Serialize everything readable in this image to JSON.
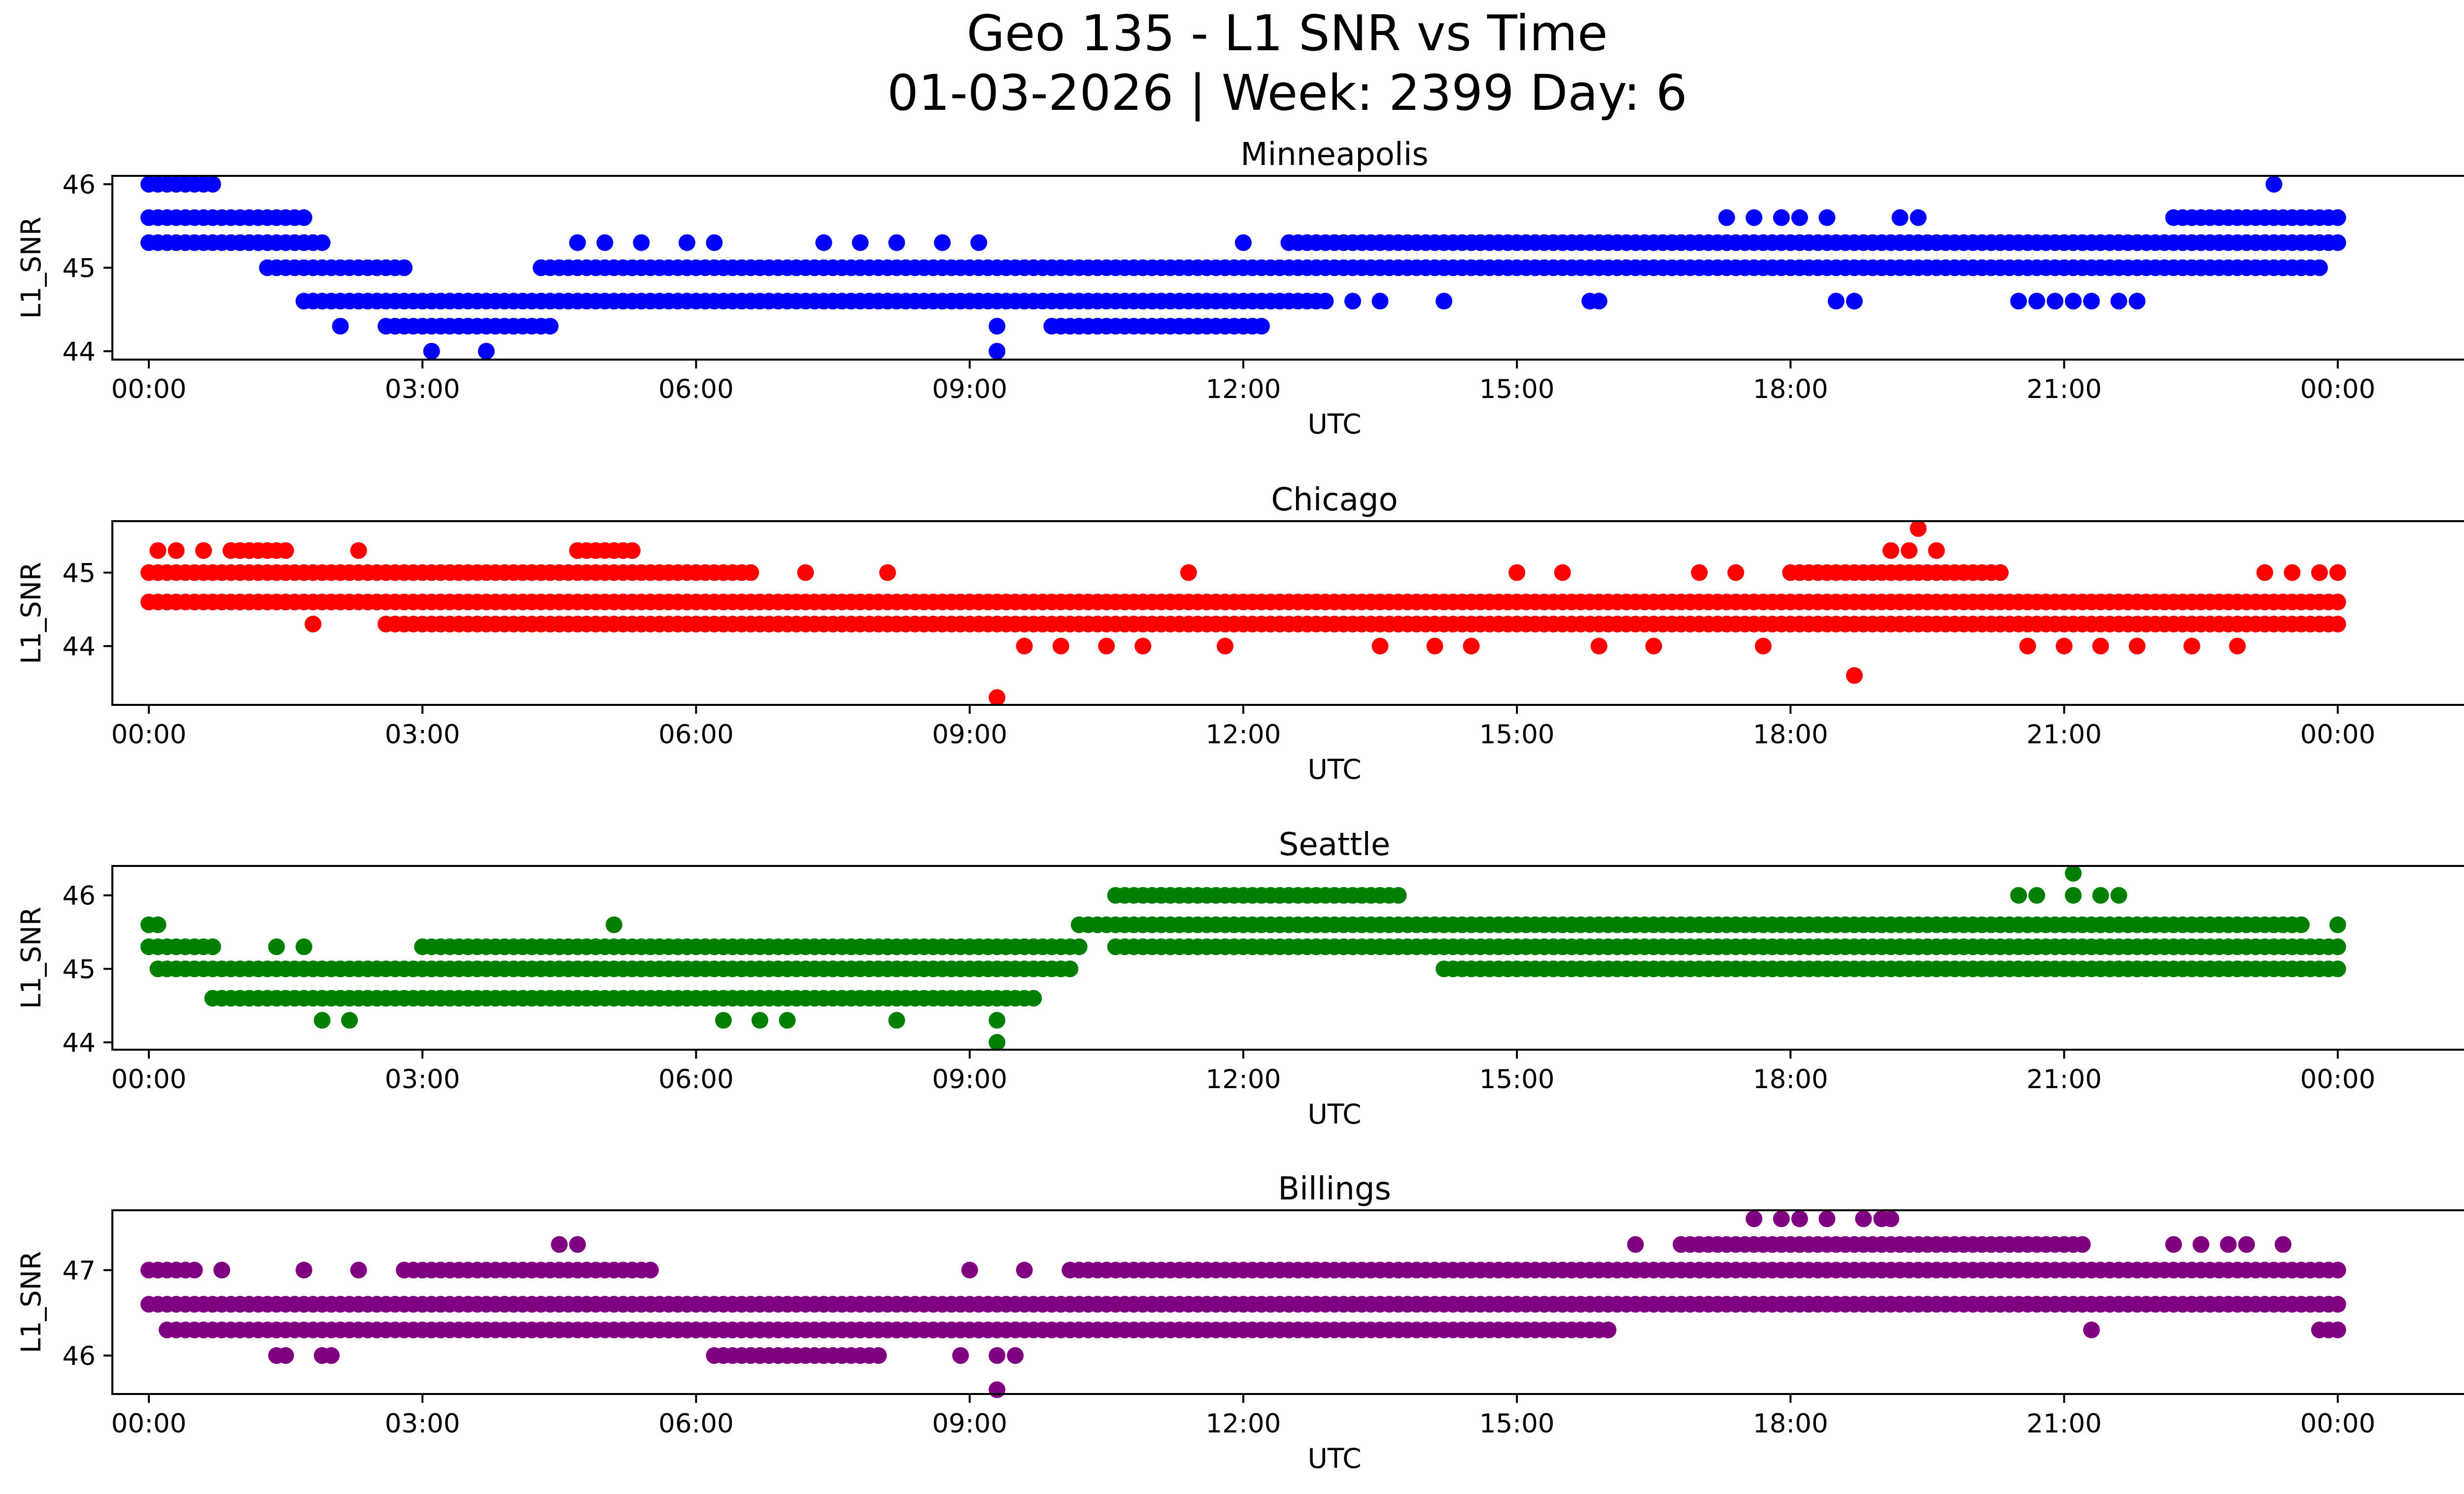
{
  "figure": {
    "title_line1": "Geo 135 - L1 SNR vs Time",
    "title_line2": "01-03-2026 | Week: 2399 Day: 6"
  },
  "chart_data": [
    {
      "type": "scatter",
      "title": "Minneapolis",
      "xlabel": "UTC",
      "ylabel": "L1_SNR",
      "color": "#0000ff",
      "xlim": [
        -0.4,
        26.4
      ],
      "ylim": [
        43.9,
        46.1
      ],
      "xticks": [
        0,
        3,
        6,
        9,
        12,
        15,
        18,
        21,
        24
      ],
      "xtick_labels": [
        "00:00",
        "03:00",
        "06:00",
        "09:00",
        "12:00",
        "15:00",
        "18:00",
        "21:00",
        "00:00"
      ],
      "yticks": [
        44,
        45,
        46
      ],
      "ytick_labels": [
        "44",
        "45",
        "46"
      ],
      "point_runs": [
        {
          "from": 0.0,
          "to": 0.7,
          "y": 46.0
        },
        {
          "from": 0.0,
          "to": 1.7,
          "y": 45.6
        },
        {
          "from": 0.0,
          "to": 1.9,
          "y": 45.3
        },
        {
          "from": 1.3,
          "to": 2.8,
          "y": 45.0
        },
        {
          "from": 1.7,
          "to": 12.9,
          "y": 44.6
        },
        {
          "from": 4.3,
          "to": 23.8,
          "y": 45.0
        },
        {
          "from": 12.5,
          "to": 24.0,
          "y": 45.3
        },
        {
          "from": 22.2,
          "to": 24.0,
          "y": 45.6
        },
        {
          "from": 2.6,
          "to": 4.4,
          "y": 44.3
        },
        {
          "from": 9.9,
          "to": 12.2,
          "y": 44.3
        }
      ],
      "points": [
        {
          "x": 2.1,
          "y": 44.3
        },
        {
          "x": 3.1,
          "y": 44.0
        },
        {
          "x": 3.7,
          "y": 44.0
        },
        {
          "x": 9.3,
          "y": 44.0
        },
        {
          "x": 9.3,
          "y": 44.3
        },
        {
          "x": 4.7,
          "y": 45.3
        },
        {
          "x": 5.0,
          "y": 45.3
        },
        {
          "x": 5.4,
          "y": 45.3
        },
        {
          "x": 5.9,
          "y": 45.3
        },
        {
          "x": 6.2,
          "y": 45.3
        },
        {
          "x": 7.4,
          "y": 45.3
        },
        {
          "x": 7.8,
          "y": 45.3
        },
        {
          "x": 8.2,
          "y": 45.3
        },
        {
          "x": 8.7,
          "y": 45.3
        },
        {
          "x": 9.1,
          "y": 45.3
        },
        {
          "x": 12.0,
          "y": 45.3
        },
        {
          "x": 13.2,
          "y": 44.6
        },
        {
          "x": 13.5,
          "y": 44.6
        },
        {
          "x": 14.2,
          "y": 44.6
        },
        {
          "x": 15.8,
          "y": 44.6
        },
        {
          "x": 15.9,
          "y": 44.6
        },
        {
          "x": 17.3,
          "y": 45.6
        },
        {
          "x": 17.6,
          "y": 45.6
        },
        {
          "x": 17.9,
          "y": 45.6
        },
        {
          "x": 18.1,
          "y": 45.6
        },
        {
          "x": 18.4,
          "y": 45.6
        },
        {
          "x": 19.2,
          "y": 45.6
        },
        {
          "x": 19.4,
          "y": 45.6
        },
        {
          "x": 18.5,
          "y": 44.6
        },
        {
          "x": 18.7,
          "y": 44.6
        },
        {
          "x": 20.5,
          "y": 44.6
        },
        {
          "x": 20.7,
          "y": 44.6
        },
        {
          "x": 20.9,
          "y": 44.6
        },
        {
          "x": 21.1,
          "y": 44.6
        },
        {
          "x": 21.3,
          "y": 44.6
        },
        {
          "x": 21.6,
          "y": 44.6
        },
        {
          "x": 21.8,
          "y": 44.6
        },
        {
          "x": 22.5,
          "y": 45.0
        },
        {
          "x": 23.3,
          "y": 46.0
        },
        {
          "x": 23.4,
          "y": 45.0
        },
        {
          "x": 23.6,
          "y": 45.0
        }
      ]
    },
    {
      "type": "scatter",
      "title": "Chicago",
      "xlabel": "UTC",
      "ylabel": "L1_SNR",
      "color": "#ff0000",
      "xlim": [
        -0.4,
        26.4
      ],
      "ylim": [
        43.2,
        45.7
      ],
      "xticks": [
        0,
        3,
        6,
        9,
        12,
        15,
        18,
        21,
        24
      ],
      "xtick_labels": [
        "00:00",
        "03:00",
        "06:00",
        "09:00",
        "12:00",
        "15:00",
        "18:00",
        "21:00",
        "00:00"
      ],
      "yticks": [
        44,
        45
      ],
      "ytick_labels": [
        "44",
        "45"
      ],
      "point_runs": [
        {
          "from": 0.0,
          "to": 6.6,
          "y": 45.0
        },
        {
          "from": 0.0,
          "to": 24.0,
          "y": 44.6
        },
        {
          "from": 2.7,
          "to": 24.0,
          "y": 44.3
        },
        {
          "from": 18.0,
          "to": 20.3,
          "y": 45.0
        },
        {
          "from": 0.9,
          "to": 1.5,
          "y": 45.3
        },
        {
          "from": 4.7,
          "to": 5.3,
          "y": 45.3
        }
      ],
      "points": [
        {
          "x": 0.1,
          "y": 45.3
        },
        {
          "x": 0.3,
          "y": 45.3
        },
        {
          "x": 0.6,
          "y": 45.3
        },
        {
          "x": 2.3,
          "y": 45.3
        },
        {
          "x": 1.8,
          "y": 44.3
        },
        {
          "x": 2.6,
          "y": 44.3
        },
        {
          "x": 9.3,
          "y": 43.3
        },
        {
          "x": 11.4,
          "y": 45.0
        },
        {
          "x": 7.2,
          "y": 45.0
        },
        {
          "x": 8.1,
          "y": 45.0
        },
        {
          "x": 9.6,
          "y": 44.0
        },
        {
          "x": 10.0,
          "y": 44.0
        },
        {
          "x": 10.5,
          "y": 44.0
        },
        {
          "x": 10.9,
          "y": 44.0
        },
        {
          "x": 11.8,
          "y": 44.0
        },
        {
          "x": 13.5,
          "y": 44.0
        },
        {
          "x": 14.1,
          "y": 44.0
        },
        {
          "x": 14.5,
          "y": 44.0
        },
        {
          "x": 15.0,
          "y": 45.0
        },
        {
          "x": 15.5,
          "y": 45.0
        },
        {
          "x": 15.9,
          "y": 44.0
        },
        {
          "x": 16.5,
          "y": 44.0
        },
        {
          "x": 17.0,
          "y": 45.0
        },
        {
          "x": 17.4,
          "y": 45.0
        },
        {
          "x": 17.7,
          "y": 44.0
        },
        {
          "x": 18.7,
          "y": 43.6
        },
        {
          "x": 19.4,
          "y": 45.6
        },
        {
          "x": 19.1,
          "y": 45.3
        },
        {
          "x": 19.3,
          "y": 45.3
        },
        {
          "x": 19.6,
          "y": 45.3
        },
        {
          "x": 20.6,
          "y": 44.0
        },
        {
          "x": 21.0,
          "y": 44.0
        },
        {
          "x": 21.4,
          "y": 44.0
        },
        {
          "x": 21.8,
          "y": 44.0
        },
        {
          "x": 22.4,
          "y": 44.0
        },
        {
          "x": 22.9,
          "y": 44.0
        },
        {
          "x": 23.2,
          "y": 45.0
        },
        {
          "x": 23.5,
          "y": 45.0
        },
        {
          "x": 23.8,
          "y": 45.0
        },
        {
          "x": 24.0,
          "y": 45.0
        }
      ]
    },
    {
      "type": "scatter",
      "title": "Seattle",
      "xlabel": "UTC",
      "ylabel": "L1_SNR",
      "color": "#008000",
      "xlim": [
        -0.4,
        26.4
      ],
      "ylim": [
        43.9,
        46.4
      ],
      "xticks": [
        0,
        3,
        6,
        9,
        12,
        15,
        18,
        21,
        24
      ],
      "xtick_labels": [
        "00:00",
        "03:00",
        "06:00",
        "09:00",
        "12:00",
        "15:00",
        "18:00",
        "21:00",
        "00:00"
      ],
      "yticks": [
        44,
        45,
        46
      ],
      "ytick_labels": [
        "44",
        "45",
        "46"
      ],
      "point_runs": [
        {
          "from": 0.0,
          "to": 0.7,
          "y": 45.3
        },
        {
          "from": 0.1,
          "to": 10.1,
          "y": 45.0
        },
        {
          "from": 0.7,
          "to": 9.7,
          "y": 44.6
        },
        {
          "from": 3.0,
          "to": 10.2,
          "y": 45.3
        },
        {
          "from": 10.2,
          "to": 23.6,
          "y": 45.6
        },
        {
          "from": 10.6,
          "to": 24.0,
          "y": 45.3
        },
        {
          "from": 14.2,
          "to": 24.0,
          "y": 45.0
        },
        {
          "from": 10.6,
          "to": 13.7,
          "y": 46.0
        }
      ],
      "points": [
        {
          "x": 0.0,
          "y": 45.6
        },
        {
          "x": 0.1,
          "y": 45.6
        },
        {
          "x": 1.4,
          "y": 45.3
        },
        {
          "x": 1.7,
          "y": 45.3
        },
        {
          "x": 1.9,
          "y": 44.3
        },
        {
          "x": 2.2,
          "y": 44.3
        },
        {
          "x": 5.1,
          "y": 45.6
        },
        {
          "x": 5.5,
          "y": 45.3
        },
        {
          "x": 6.3,
          "y": 44.3
        },
        {
          "x": 6.7,
          "y": 44.3
        },
        {
          "x": 7.0,
          "y": 44.3
        },
        {
          "x": 8.2,
          "y": 44.3
        },
        {
          "x": 7.7,
          "y": 45.3
        },
        {
          "x": 8.1,
          "y": 45.3
        },
        {
          "x": 9.3,
          "y": 44.0
        },
        {
          "x": 9.3,
          "y": 44.3
        },
        {
          "x": 20.5,
          "y": 46.0
        },
        {
          "x": 20.7,
          "y": 46.0
        },
        {
          "x": 21.1,
          "y": 46.3
        },
        {
          "x": 21.1,
          "y": 46.0
        },
        {
          "x": 21.4,
          "y": 46.0
        },
        {
          "x": 21.6,
          "y": 46.0
        },
        {
          "x": 20.9,
          "y": 45.0
        },
        {
          "x": 21.8,
          "y": 45.0
        },
        {
          "x": 22.6,
          "y": 45.0
        },
        {
          "x": 24.0,
          "y": 45.6
        }
      ]
    },
    {
      "type": "scatter",
      "title": "Billings",
      "xlabel": "UTC",
      "ylabel": "L1_SNR",
      "color": "#800080",
      "xlim": [
        -0.4,
        26.4
      ],
      "ylim": [
        45.55,
        47.7
      ],
      "xticks": [
        0,
        3,
        6,
        9,
        12,
        15,
        18,
        21,
        24
      ],
      "xtick_labels": [
        "00:00",
        "03:00",
        "06:00",
        "09:00",
        "12:00",
        "15:00",
        "18:00",
        "21:00",
        "00:00"
      ],
      "yticks": [
        46,
        47
      ],
      "ytick_labels": [
        "46",
        "47"
      ],
      "point_runs": [
        {
          "from": 0.0,
          "to": 0.5,
          "y": 47.0
        },
        {
          "from": 0.0,
          "to": 24.0,
          "y": 46.6
        },
        {
          "from": 0.2,
          "to": 9.6,
          "y": 46.3
        },
        {
          "from": 5.3,
          "to": 16.0,
          "y": 46.3
        },
        {
          "from": 6.2,
          "to": 8.0,
          "y": 46.0
        },
        {
          "from": 2.8,
          "to": 5.5,
          "y": 47.0
        },
        {
          "from": 10.1,
          "to": 24.0,
          "y": 47.0
        },
        {
          "from": 16.8,
          "to": 21.2,
          "y": 47.3
        },
        {
          "from": 23.8,
          "to": 24.0,
          "y": 46.3
        }
      ],
      "points": [
        {
          "x": 0.8,
          "y": 47.0
        },
        {
          "x": 1.4,
          "y": 46.0
        },
        {
          "x": 1.5,
          "y": 46.0
        },
        {
          "x": 1.7,
          "y": 47.0
        },
        {
          "x": 1.9,
          "y": 46.0
        },
        {
          "x": 2.0,
          "y": 46.0
        },
        {
          "x": 2.3,
          "y": 47.0
        },
        {
          "x": 4.5,
          "y": 47.3
        },
        {
          "x": 4.7,
          "y": 47.3
        },
        {
          "x": 8.9,
          "y": 46.0
        },
        {
          "x": 9.0,
          "y": 47.0
        },
        {
          "x": 9.3,
          "y": 45.6
        },
        {
          "x": 9.3,
          "y": 46.0
        },
        {
          "x": 9.5,
          "y": 46.0
        },
        {
          "x": 9.6,
          "y": 47.0
        },
        {
          "x": 16.3,
          "y": 47.3
        },
        {
          "x": 17.6,
          "y": 47.6
        },
        {
          "x": 17.9,
          "y": 47.6
        },
        {
          "x": 18.1,
          "y": 47.6
        },
        {
          "x": 18.4,
          "y": 47.6
        },
        {
          "x": 18.8,
          "y": 47.6
        },
        {
          "x": 19.0,
          "y": 47.6
        },
        {
          "x": 19.1,
          "y": 47.6
        },
        {
          "x": 18.8,
          "y": 46.6
        },
        {
          "x": 21.3,
          "y": 46.3
        },
        {
          "x": 22.2,
          "y": 47.3
        },
        {
          "x": 22.5,
          "y": 47.3
        },
        {
          "x": 22.8,
          "y": 47.3
        },
        {
          "x": 23.0,
          "y": 47.3
        },
        {
          "x": 23.4,
          "y": 47.3
        }
      ]
    }
  ]
}
